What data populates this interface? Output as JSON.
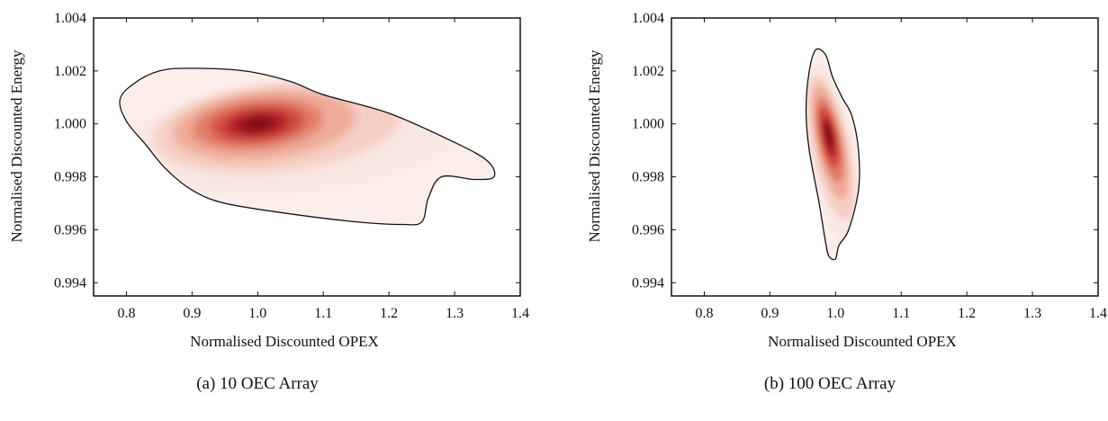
{
  "chart_data": [
    {
      "type": "heatmap",
      "subtype": "kernel-density-contour",
      "caption": "(a) 10 OEC Array",
      "xlabel": "Normalised Discounted OPEX",
      "ylabel": "Normalised Discounted Energy",
      "xlim": [
        0.75,
        1.4
      ],
      "ylim": [
        0.9935,
        1.004
      ],
      "xticks": [
        "0.8",
        "0.9",
        "1.0",
        "1.1",
        "1.2",
        "1.3",
        "1.4"
      ],
      "yticks": [
        "0.994",
        "0.996",
        "0.998",
        "1.000",
        "1.002",
        "1.004"
      ],
      "colormap": "white-to-dark-red",
      "peak": {
        "x": 1.0,
        "y": 1.0
      },
      "outer_contour": [
        [
          0.79,
          1.0009
        ],
        [
          0.81,
          1.0015
        ],
        [
          0.85,
          1.002
        ],
        [
          0.9,
          1.0021
        ],
        [
          0.98,
          1.002
        ],
        [
          1.05,
          1.0016
        ],
        [
          1.1,
          1.0011
        ],
        [
          1.2,
          1.0004
        ],
        [
          1.3,
          0.9993
        ],
        [
          1.35,
          0.9986
        ],
        [
          1.36,
          0.998
        ],
        [
          1.33,
          0.9979
        ],
        [
          1.28,
          0.998
        ],
        [
          1.26,
          0.9972
        ],
        [
          1.25,
          0.9963
        ],
        [
          1.22,
          0.9962
        ],
        [
          1.15,
          0.9963
        ],
        [
          1.05,
          0.9966
        ],
        [
          0.95,
          0.997
        ],
        [
          0.9,
          0.9975
        ],
        [
          0.86,
          0.9983
        ],
        [
          0.83,
          0.9992
        ],
        [
          0.8,
          1.0001
        ]
      ],
      "density_levels": [
        {
          "cx": 1.06,
          "cy": 0.99955,
          "rx": 0.26,
          "ry": 0.0021,
          "color": "#f9e7e2"
        },
        {
          "cx": 1.03,
          "cy": 0.99985,
          "rx": 0.19,
          "ry": 0.00165,
          "color": "#f5cfc4"
        },
        {
          "cx": 1.01,
          "cy": 0.99995,
          "rx": 0.14,
          "ry": 0.0013,
          "color": "#efab9a"
        },
        {
          "cx": 1.0,
          "cy": 1.0,
          "rx": 0.1,
          "ry": 0.00095,
          "color": "#e27d68"
        },
        {
          "cx": 1.0,
          "cy": 1.0,
          "rx": 0.072,
          "ry": 0.0007,
          "color": "#cf4c3c"
        },
        {
          "cx": 1.0,
          "cy": 1.0,
          "rx": 0.048,
          "ry": 0.0005,
          "color": "#b21f26"
        },
        {
          "cx": 1.0,
          "cy": 1.0,
          "rx": 0.026,
          "ry": 0.00028,
          "color": "#7f0a15"
        }
      ]
    },
    {
      "type": "heatmap",
      "subtype": "kernel-density-contour",
      "caption": "(b) 100 OEC Array",
      "xlabel": "Normalised Discounted OPEX",
      "ylabel": "Normalised Discounted Energy",
      "xlim": [
        0.75,
        1.4
      ],
      "ylim": [
        0.9935,
        1.004
      ],
      "xticks": [
        "0.8",
        "0.9",
        "1.0",
        "1.1",
        "1.2",
        "1.3",
        "1.4"
      ],
      "yticks": [
        "0.994",
        "0.996",
        "0.998",
        "1.000",
        "1.002",
        "1.004"
      ],
      "colormap": "white-to-dark-red",
      "peak": {
        "x": 0.99,
        "y": 0.9995
      },
      "outer_contour": [
        [
          0.97,
          1.0028
        ],
        [
          0.96,
          1.002
        ],
        [
          0.955,
          1.0005
        ],
        [
          0.96,
          0.999
        ],
        [
          0.975,
          0.997
        ],
        [
          0.985,
          0.9955
        ],
        [
          0.99,
          0.995
        ],
        [
          1.0,
          0.9949
        ],
        [
          1.005,
          0.9954
        ],
        [
          1.02,
          0.996
        ],
        [
          1.035,
          0.9975
        ],
        [
          1.035,
          0.999
        ],
        [
          1.025,
          1.0003
        ],
        [
          1.01,
          1.001
        ],
        [
          0.995,
          1.0018
        ],
        [
          0.985,
          1.0026
        ]
      ],
      "density_levels": [
        {
          "cx": 0.995,
          "cy": 0.99885,
          "rx": 0.036,
          "ry": 0.0036,
          "color": "#f9e7e2"
        },
        {
          "cx": 0.993,
          "cy": 0.9991,
          "rx": 0.028,
          "ry": 0.0028,
          "color": "#f5cfc4"
        },
        {
          "cx": 0.992,
          "cy": 0.9993,
          "rx": 0.022,
          "ry": 0.0022,
          "color": "#efab9a"
        },
        {
          "cx": 0.991,
          "cy": 0.9994,
          "rx": 0.017,
          "ry": 0.00165,
          "color": "#e27d68"
        },
        {
          "cx": 0.99,
          "cy": 0.9995,
          "rx": 0.013,
          "ry": 0.0012,
          "color": "#cf4c3c"
        },
        {
          "cx": 0.99,
          "cy": 0.9995,
          "rx": 0.009,
          "ry": 0.0008,
          "color": "#b21f26"
        },
        {
          "cx": 0.99,
          "cy": 0.9996,
          "rx": 0.005,
          "ry": 0.00045,
          "color": "#7f0a15"
        }
      ]
    }
  ]
}
